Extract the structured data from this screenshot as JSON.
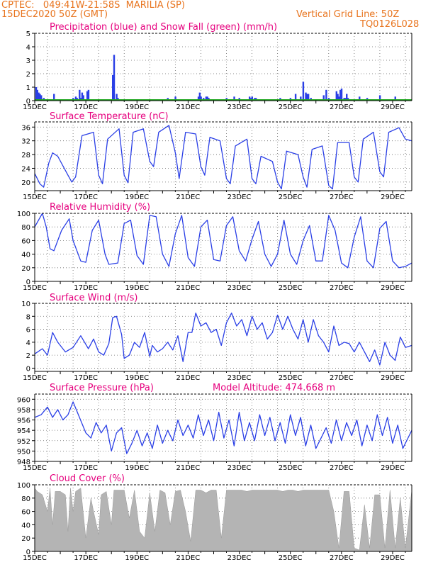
{
  "header": {
    "line1_left": "CPTEC:   049:41W-21:58S  MARILIA (SP)",
    "line2_left": "15DEC2020 50Z (GMT)",
    "line2_right": "Vertical Grid Line: 50Z",
    "line3_right": "TQ0126L028"
  },
  "colors": {
    "header_text": "#e8741e",
    "title_text": "#e6007e",
    "line": "#2a3fe6",
    "snow": "#1fa61f",
    "cloud": "#b4b4b4",
    "grid": "#666666"
  },
  "date_labels": [
    "15DEC",
    "17DEC",
    "19DEC",
    "21DEC",
    "23DEC",
    "25DEC",
    "27DEC",
    "29DEC"
  ],
  "chart_data": [
    {
      "id": "precip",
      "type": "bar",
      "title": "Precipitation (blue) and Snow Fall (green) (mm/h)",
      "ylim": [
        0,
        5
      ],
      "yticks": [
        0,
        1,
        2,
        3,
        4,
        5
      ],
      "grid": true,
      "days": [
        0.05,
        0.1,
        0.15,
        0.2,
        0.25,
        0.35,
        0.75,
        1.5,
        1.6,
        1.65,
        1.75,
        1.8,
        1.85,
        1.9,
        2.05,
        2.1,
        3.05,
        3.1,
        3.2,
        3.25,
        5.2,
        5.5,
        6.4,
        6.45,
        6.5,
        6.6,
        6.7,
        6.75,
        6.8,
        7.5,
        7.8,
        8.0,
        8.4,
        8.45,
        8.5,
        8.6,
        8.65,
        9.6,
        10.0,
        10.2,
        10.4,
        10.5,
        10.6,
        10.65,
        10.7,
        10.8,
        11.3,
        11.4,
        11.5,
        11.8,
        11.85,
        11.9,
        11.95,
        12.0,
        12.1,
        12.15,
        12.2,
        12.25,
        12.7,
        13.0,
        13.5,
        14.1
      ],
      "values": [
        1.0,
        0.8,
        0.6,
        0.5,
        0.4,
        0.2,
        0.5,
        0.2,
        0.3,
        0.2,
        0.8,
        0.2,
        0.6,
        0.4,
        0.7,
        0.8,
        1.9,
        3.4,
        0.5,
        0.2,
        0.2,
        0.3,
        0.3,
        0.6,
        0.3,
        0.2,
        0.3,
        0.3,
        0.2,
        0.2,
        0.3,
        0.2,
        0.3,
        0.2,
        0.3,
        0.2,
        0.2,
        0.2,
        0.2,
        0.5,
        0.3,
        1.4,
        0.6,
        0.5,
        0.5,
        0.2,
        0.4,
        0.8,
        0.2,
        0.7,
        0.5,
        0.3,
        0.8,
        0.9,
        0.2,
        0.2,
        0.5,
        0.2,
        0.3,
        0.2,
        0.4,
        0.3
      ],
      "snow": 0
    },
    {
      "id": "temp",
      "type": "line",
      "title": "Surface Temperature (nC)",
      "ylim": [
        17.5,
        37.5
      ],
      "yticks": [
        20,
        24,
        28,
        32,
        36
      ],
      "grid": true,
      "x": [
        0,
        0.2,
        0.35,
        0.55,
        0.7,
        0.9,
        1.3,
        1.45,
        1.6,
        1.85,
        2.3,
        2.5,
        2.65,
        2.85,
        3.3,
        3.5,
        3.65,
        3.85,
        4.25,
        4.5,
        4.65,
        4.85,
        5.25,
        5.5,
        5.65,
        5.9,
        6.3,
        6.5,
        6.65,
        6.85,
        7.25,
        7.5,
        7.65,
        7.85,
        8.3,
        8.5,
        8.65,
        8.85,
        9.3,
        9.5,
        9.65,
        9.85,
        10.3,
        10.5,
        10.65,
        10.85,
        11.25,
        11.5,
        11.65,
        11.85,
        12.3,
        12.5,
        12.65,
        12.85,
        13.25,
        13.5,
        13.65,
        13.85,
        14.25,
        14.5,
        14.75
      ],
      "values": [
        22.5,
        19.5,
        18.5,
        25.5,
        28.5,
        27.5,
        22.0,
        20.0,
        21.5,
        33.5,
        34.5,
        22.0,
        19.5,
        32.5,
        35.5,
        22.0,
        19.8,
        34.5,
        35.5,
        26.0,
        24.5,
        34.5,
        36.5,
        28.5,
        21.0,
        34.5,
        34.0,
        24.5,
        22.0,
        33.0,
        32.0,
        21.0,
        19.5,
        30.5,
        32.5,
        21.0,
        19.5,
        27.5,
        26.0,
        20.0,
        18.0,
        29.0,
        28.0,
        21.5,
        18.5,
        29.5,
        30.5,
        19.0,
        18.0,
        31.5,
        31.5,
        21.5,
        20.0,
        32.5,
        34.5,
        23.0,
        21.5,
        34.5,
        35.8,
        32.5,
        32.0
      ]
    },
    {
      "id": "rh",
      "type": "line",
      "title": "Relative Humidity (%)",
      "ylim": [
        0,
        100
      ],
      "yticks": [
        0,
        20,
        40,
        60,
        80,
        100
      ],
      "grid": true,
      "x": [
        0,
        0.3,
        0.45,
        0.6,
        0.75,
        0.9,
        1.05,
        1.35,
        1.5,
        1.8,
        2.0,
        2.25,
        2.5,
        2.75,
        2.9,
        3.25,
        3.5,
        3.75,
        4.0,
        4.25,
        4.5,
        4.75,
        5.0,
        5.25,
        5.5,
        5.75,
        6.0,
        6.25,
        6.5,
        6.75,
        7.0,
        7.25,
        7.5,
        7.75,
        8.0,
        8.25,
        8.5,
        8.75,
        9.0,
        9.25,
        9.5,
        9.75,
        10.0,
        10.25,
        10.5,
        10.75,
        11.0,
        11.25,
        11.5,
        11.75,
        12.0,
        12.25,
        12.5,
        12.75,
        13.0,
        13.25,
        13.5,
        13.75,
        14.0,
        14.25,
        14.5,
        14.75
      ],
      "values": [
        80,
        100,
        80,
        48,
        45,
        60,
        75,
        92,
        60,
        30,
        28,
        75,
        90,
        40,
        25,
        27,
        85,
        90,
        38,
        25,
        97,
        95,
        40,
        22,
        70,
        97,
        35,
        22,
        80,
        90,
        32,
        30,
        82,
        95,
        45,
        30,
        62,
        88,
        40,
        22,
        40,
        90,
        40,
        25,
        60,
        82,
        30,
        30,
        97,
        75,
        27,
        20,
        65,
        95,
        30,
        20,
        78,
        88,
        30,
        20,
        22,
        27
      ]
    },
    {
      "id": "wind",
      "type": "line",
      "title": "Surface Wind (m/s)",
      "ylim": [
        -0.5,
        10
      ],
      "yticks": [
        0,
        2,
        4,
        6,
        8,
        10
      ],
      "grid": true,
      "x": [
        0,
        0.3,
        0.5,
        0.7,
        0.9,
        1.2,
        1.5,
        1.8,
        2.1,
        2.3,
        2.5,
        2.7,
        2.9,
        3.05,
        3.2,
        3.4,
        3.5,
        3.7,
        3.9,
        4.1,
        4.3,
        4.5,
        4.6,
        4.8,
        5.0,
        5.2,
        5.4,
        5.6,
        5.8,
        6.0,
        6.15,
        6.3,
        6.5,
        6.7,
        6.9,
        7.1,
        7.3,
        7.5,
        7.7,
        7.9,
        8.1,
        8.3,
        8.5,
        8.7,
        8.9,
        9.1,
        9.3,
        9.5,
        9.7,
        9.9,
        10.1,
        10.3,
        10.5,
        10.7,
        10.9,
        11.1,
        11.3,
        11.5,
        11.7,
        11.9,
        12.1,
        12.3,
        12.5,
        12.7,
        12.9,
        13.1,
        13.3,
        13.5,
        13.7,
        13.9,
        14.1,
        14.3,
        14.5,
        14.75
      ],
      "values": [
        2.2,
        3.0,
        2.0,
        5.5,
        4.0,
        2.5,
        3.2,
        5.0,
        3.0,
        4.5,
        2.5,
        2.0,
        3.8,
        7.8,
        8.0,
        5.2,
        1.5,
        2.0,
        4.0,
        3.2,
        5.5,
        1.8,
        3.5,
        2.5,
        3.0,
        4.0,
        2.8,
        5.0,
        1.0,
        5.5,
        5.5,
        8.5,
        6.5,
        7.0,
        5.5,
        6.0,
        3.5,
        7.0,
        8.5,
        6.5,
        7.5,
        5.0,
        8.0,
        6.0,
        7.0,
        4.5,
        5.5,
        8.2,
        6.0,
        8.0,
        6.0,
        4.5,
        7.5,
        4.0,
        7.5,
        5.0,
        4.0,
        2.5,
        6.5,
        3.5,
        4.0,
        3.8,
        2.5,
        4.0,
        2.5,
        1.0,
        2.8,
        0.5,
        4.0,
        2.0,
        1.2,
        4.8,
        3.2,
        3.5
      ]
    },
    {
      "id": "pressure",
      "type": "line",
      "title": "Surface Pressure (hPa)",
      "annotation": "Model Altitude: 474.668  m",
      "ylim": [
        948,
        961
      ],
      "yticks": [
        948,
        950,
        952,
        954,
        956,
        958,
        960
      ],
      "grid": true,
      "x": [
        0,
        0.25,
        0.5,
        0.7,
        0.9,
        1.1,
        1.3,
        1.5,
        1.75,
        2.0,
        2.2,
        2.4,
        2.6,
        2.8,
        3.0,
        3.2,
        3.4,
        3.6,
        3.8,
        4.0,
        4.2,
        4.4,
        4.6,
        4.8,
        5.0,
        5.2,
        5.4,
        5.6,
        5.8,
        6.0,
        6.2,
        6.4,
        6.6,
        6.8,
        7.0,
        7.2,
        7.4,
        7.6,
        7.8,
        8.0,
        8.2,
        8.4,
        8.6,
        8.8,
        9.0,
        9.2,
        9.4,
        9.6,
        9.8,
        10.0,
        10.2,
        10.4,
        10.6,
        10.8,
        11.0,
        11.2,
        11.4,
        11.6,
        11.8,
        12.0,
        12.2,
        12.4,
        12.6,
        12.8,
        13.0,
        13.2,
        13.4,
        13.6,
        13.8,
        14.0,
        14.2,
        14.4,
        14.6,
        14.75
      ],
      "values": [
        956.5,
        957.0,
        958.5,
        956.5,
        958.0,
        956.0,
        957.0,
        959.5,
        956.5,
        953.5,
        952.5,
        955.5,
        953.5,
        955.0,
        950.0,
        953.5,
        954.5,
        949.5,
        951.5,
        954.0,
        951.0,
        953.5,
        950.5,
        955.0,
        951.5,
        954.0,
        952.0,
        956.0,
        953.0,
        955.0,
        952.5,
        957.0,
        953.0,
        956.0,
        952.0,
        957.5,
        952.5,
        956.0,
        951.0,
        957.5,
        952.0,
        955.5,
        952.0,
        957.0,
        953.0,
        956.5,
        952.0,
        955.5,
        951.5,
        957.0,
        953.0,
        956.5,
        951.0,
        955.0,
        950.5,
        952.5,
        954.5,
        951.5,
        956.0,
        952.0,
        955.5,
        953.0,
        956.0,
        951.0,
        955.0,
        952.0,
        957.0,
        953.0,
        956.5,
        951.5,
        955.0,
        950.5,
        952.5,
        954.0
      ]
    },
    {
      "id": "cloud",
      "type": "area",
      "title": "Cloud Cover (%)",
      "ylim": [
        0,
        100
      ],
      "yticks": [
        0,
        20,
        40,
        60,
        80,
        100
      ],
      "grid": true,
      "x": [
        0,
        0.1,
        0.3,
        0.5,
        0.6,
        0.7,
        0.8,
        1.0,
        1.2,
        1.3,
        1.4,
        1.5,
        1.6,
        1.8,
        2.0,
        2.2,
        2.3,
        2.5,
        2.6,
        2.8,
        3.0,
        3.1,
        3.3,
        3.5,
        3.7,
        3.9,
        4.1,
        4.3,
        4.5,
        4.7,
        4.9,
        5.1,
        5.3,
        5.5,
        5.7,
        5.9,
        6.1,
        6.3,
        6.5,
        6.7,
        6.9,
        7.1,
        7.3,
        7.5,
        7.7,
        7.9,
        8.1,
        8.3,
        8.5,
        8.7,
        8.9,
        9.1,
        9.3,
        9.5,
        9.7,
        9.9,
        10.1,
        10.3,
        10.5,
        10.7,
        10.9,
        11.1,
        11.3,
        11.5,
        11.7,
        11.9,
        12.1,
        12.3,
        12.5,
        12.7,
        12.9,
        13.1,
        13.3,
        13.5,
        13.7,
        13.9,
        14.1,
        14.3,
        14.5,
        14.75
      ],
      "values": [
        95,
        90,
        85,
        60,
        95,
        40,
        90,
        90,
        85,
        30,
        95,
        60,
        90,
        95,
        20,
        80,
        60,
        25,
        85,
        90,
        40,
        92,
        92,
        92,
        50,
        92,
        30,
        20,
        88,
        30,
        92,
        88,
        40,
        90,
        92,
        60,
        15,
        92,
        92,
        88,
        92,
        92,
        20,
        92,
        92,
        92,
        92,
        90,
        92,
        92,
        92,
        92,
        92,
        92,
        90,
        92,
        92,
        90,
        92,
        92,
        92,
        92,
        92,
        92,
        60,
        5,
        90,
        90,
        5,
        2,
        70,
        5,
        85,
        85,
        5,
        92,
        5,
        80,
        5,
        92
      ]
    }
  ]
}
